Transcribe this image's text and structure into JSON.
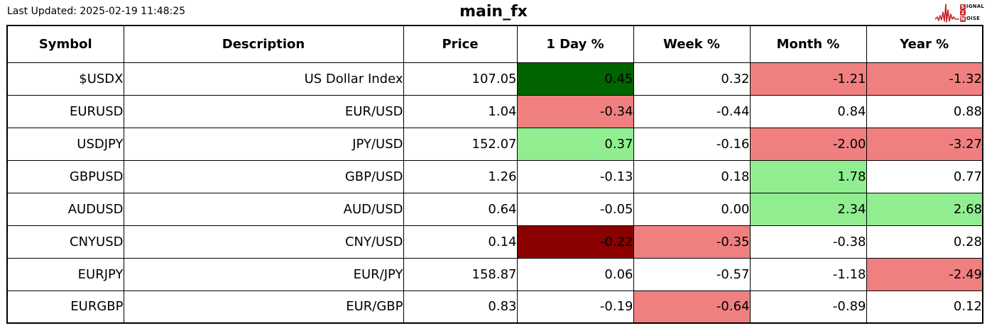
{
  "header": {
    "last_updated": "Last Updated: 2025-02-19 11:48:25",
    "title": "main_fx",
    "logo": {
      "name": "signal-2-noise",
      "s_letter": "S",
      "signal_rest": "IGNAL",
      "two": "2",
      "n_letter": "N",
      "noise_rest": "OISE",
      "accent_color": "#c62828"
    }
  },
  "chart_data": {
    "type": "table",
    "title": "main_fx",
    "columns": [
      "Symbol",
      "Description",
      "Price",
      "1 Day %",
      "Week %",
      "Month %",
      "Year %"
    ],
    "colors": {
      "darkgreen": "#006400",
      "lightgreen": "#90EE90",
      "salmon": "#F08080",
      "darkred": "#8B0000",
      "white": "#FFFFFF"
    },
    "rows": [
      {
        "symbol": "$USDX",
        "description": "US Dollar Index",
        "price": "107.05",
        "day": "0.45",
        "week": "0.32",
        "month": "-1.21",
        "year": "-1.32",
        "day_bg": "darkgreen",
        "week_bg": "white",
        "month_bg": "salmon",
        "year_bg": "salmon"
      },
      {
        "symbol": "EURUSD",
        "description": "EUR/USD",
        "price": "1.04",
        "day": "-0.34",
        "week": "-0.44",
        "month": "0.84",
        "year": "0.88",
        "day_bg": "salmon",
        "week_bg": "white",
        "month_bg": "white",
        "year_bg": "white"
      },
      {
        "symbol": "USDJPY",
        "description": "JPY/USD",
        "price": "152.07",
        "day": "0.37",
        "week": "-0.16",
        "month": "-2.00",
        "year": "-3.27",
        "day_bg": "lightgreen",
        "week_bg": "white",
        "month_bg": "salmon",
        "year_bg": "salmon"
      },
      {
        "symbol": "GBPUSD",
        "description": "GBP/USD",
        "price": "1.26",
        "day": "-0.13",
        "week": "0.18",
        "month": "1.78",
        "year": "0.77",
        "day_bg": "white",
        "week_bg": "white",
        "month_bg": "lightgreen",
        "year_bg": "white"
      },
      {
        "symbol": "AUDUSD",
        "description": "AUD/USD",
        "price": "0.64",
        "day": "-0.05",
        "week": "0.00",
        "month": "2.34",
        "year": "2.68",
        "day_bg": "white",
        "week_bg": "white",
        "month_bg": "lightgreen",
        "year_bg": "lightgreen"
      },
      {
        "symbol": "CNYUSD",
        "description": "CNY/USD",
        "price": "0.14",
        "day": "-0.22",
        "week": "-0.35",
        "month": "-0.38",
        "year": "0.28",
        "day_bg": "darkred",
        "week_bg": "salmon",
        "month_bg": "white",
        "year_bg": "white"
      },
      {
        "symbol": "EURJPY",
        "description": "EUR/JPY",
        "price": "158.87",
        "day": "0.06",
        "week": "-0.57",
        "month": "-1.18",
        "year": "-2.49",
        "day_bg": "white",
        "week_bg": "white",
        "month_bg": "white",
        "year_bg": "salmon"
      },
      {
        "symbol": "EURGBP",
        "description": "EUR/GBP",
        "price": "0.83",
        "day": "-0.19",
        "week": "-0.64",
        "month": "-0.89",
        "year": "0.12",
        "day_bg": "white",
        "week_bg": "salmon",
        "month_bg": "white",
        "year_bg": "white"
      }
    ]
  }
}
